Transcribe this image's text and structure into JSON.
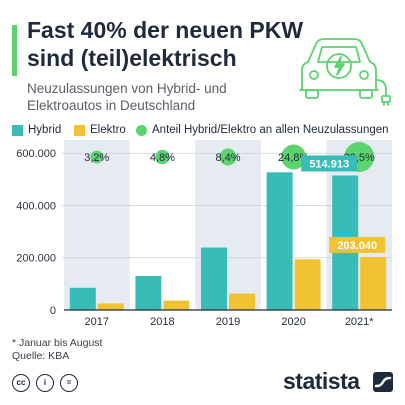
{
  "header": {
    "title_line1": "Fast 40% der neuen PKW",
    "title_line2": "sind (teil)elektrisch",
    "subtitle_line1": "Neuzulassungen von Hybrid- und",
    "subtitle_line2": "Elektroautos in Deutschland",
    "accent_color": "#5bd36e"
  },
  "icon": {
    "name": "electric-car-charging-icon"
  },
  "legend": {
    "hybrid": "Hybrid",
    "elektro": "Elektro",
    "anteil": "Anteil Hybrid/Elektro an allen Neuzulassungen"
  },
  "colors": {
    "hybrid": "#38bcb7",
    "elektro": "#f1c231",
    "anteil": "#5bd36e",
    "band": "#e5ebf1",
    "text": "#1f2a3c"
  },
  "chart_data": {
    "type": "bar",
    "categories": [
      "2017",
      "2018",
      "2019",
      "2020",
      "2021*"
    ],
    "series": [
      {
        "name": "Hybrid",
        "values": [
          85000,
          130000,
          239000,
          527000,
          514913
        ]
      },
      {
        "name": "Elektro",
        "values": [
          25000,
          36000,
          63000,
          194000,
          203040
        ]
      }
    ],
    "share": {
      "name": "Anteil Hybrid/Elektro an allen Neuzulassungen",
      "values": [
        3.2,
        4.8,
        8.4,
        24.8,
        39.5
      ],
      "labels": [
        "3,2%",
        "4,8%",
        "8,4%",
        "24,8%",
        "39,5%"
      ]
    },
    "value_labels": {
      "hybrid_2021": "514.913",
      "elektro_2021": "203.040"
    },
    "ytick_labels": [
      "600.000",
      "400.000",
      "200.000",
      "0"
    ],
    "yticks": [
      600000,
      400000,
      200000,
      0
    ],
    "ylim": [
      0,
      620000
    ],
    "grid": true
  },
  "footer": {
    "footnote": "* Januar bis August",
    "source": "Quelle: KBA",
    "license_icons": [
      "cc",
      "i",
      "="
    ],
    "brand": "statista"
  }
}
